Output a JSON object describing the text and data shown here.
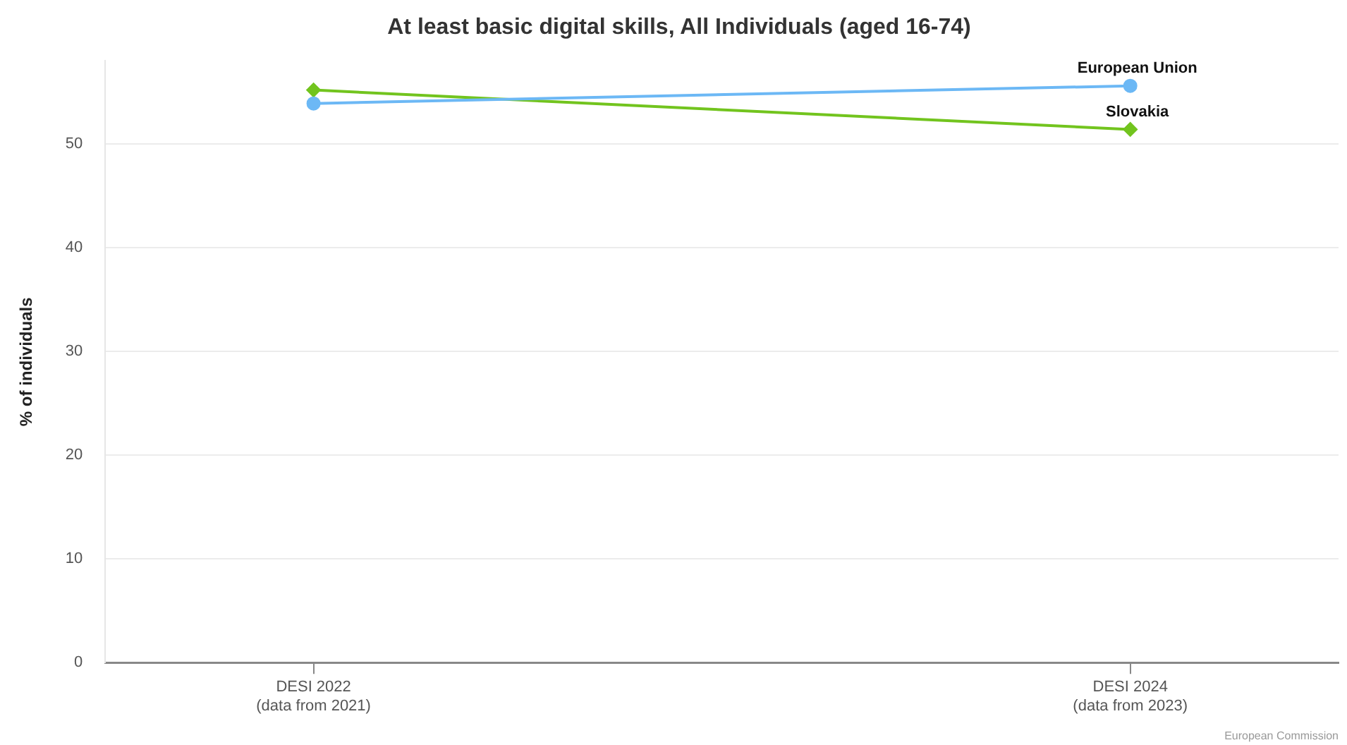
{
  "chart_data": {
    "type": "line",
    "title": "At least basic digital skills, All Individuals (aged 16-74)",
    "ylabel": "% of individuals",
    "categories": [
      "DESI 2022\n(data from 2021)",
      "DESI 2024\n(data from 2023)"
    ],
    "series": [
      {
        "name": "European Union",
        "color": "#6cb8f5",
        "values": [
          53.9,
          55.6
        ],
        "marker": "circle"
      },
      {
        "name": "Slovakia",
        "color": "#72c41e",
        "values": [
          55.2,
          51.4
        ],
        "marker": "diamond"
      }
    ],
    "ylim": [
      0,
      58
    ],
    "yticks": [
      0,
      10,
      20,
      30,
      40,
      50
    ],
    "grid": "y",
    "legend": false,
    "annotations": [
      "European Commission"
    ]
  }
}
